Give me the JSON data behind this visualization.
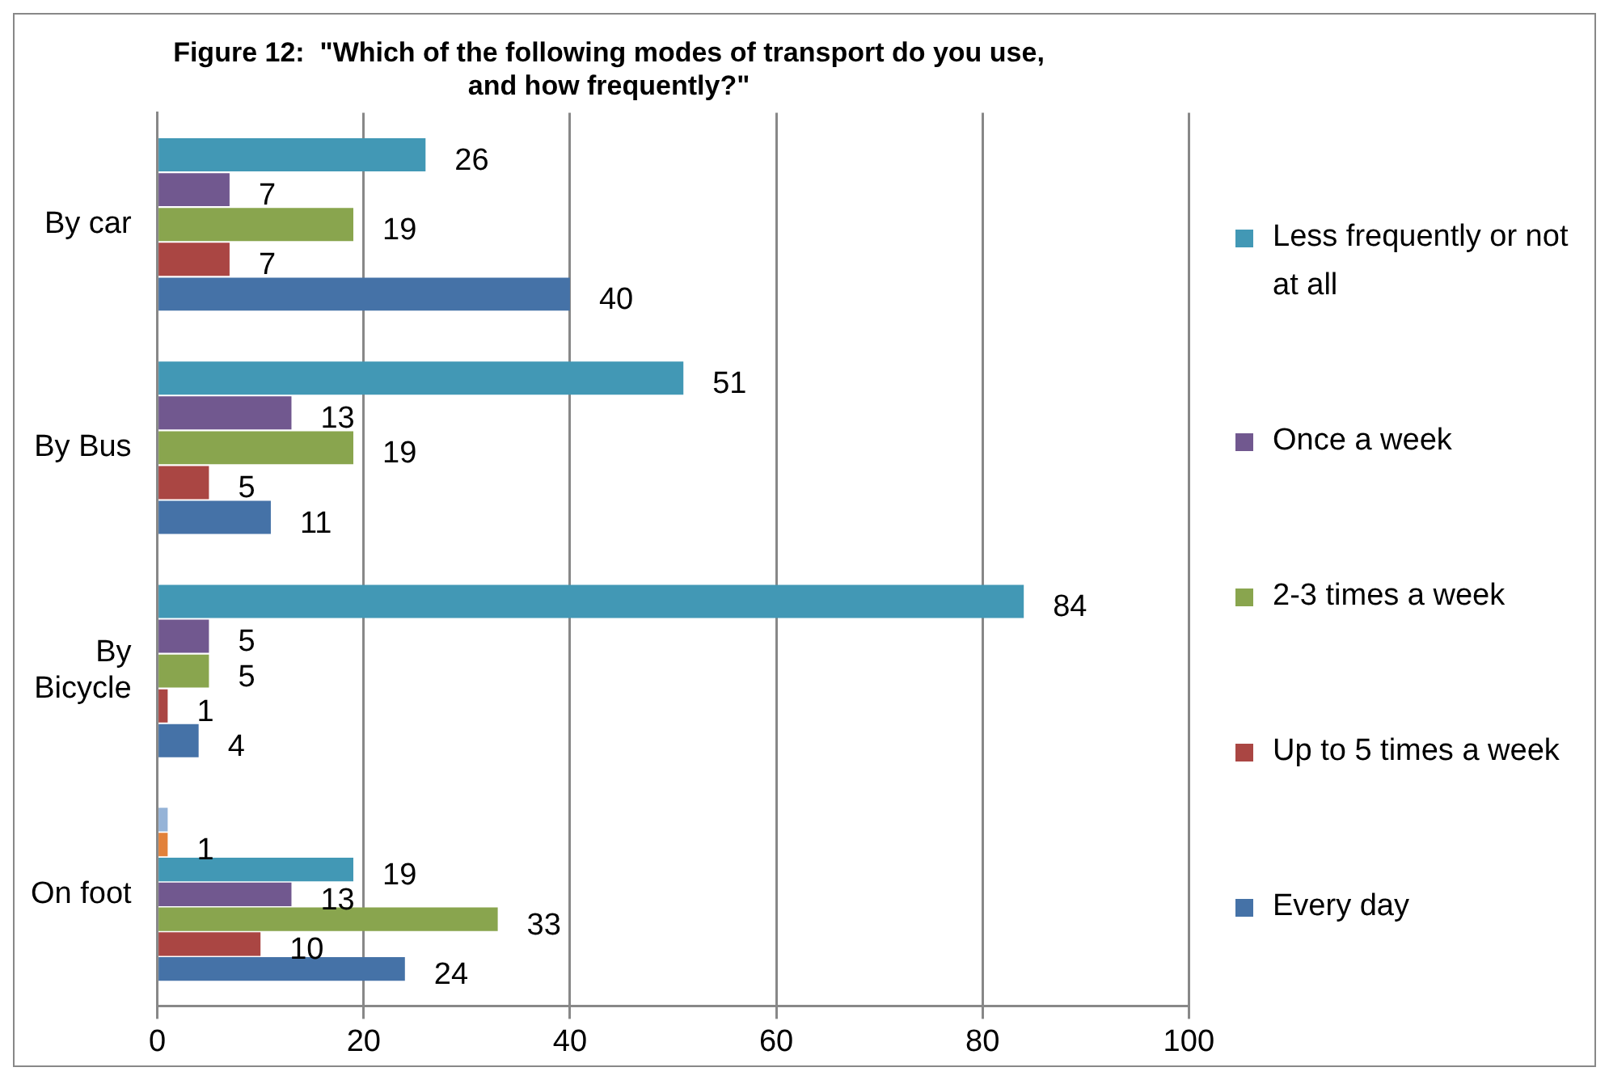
{
  "chart_data": {
    "type": "bar",
    "orientation": "horizontal",
    "title": "Figure 12:  \"Which of the following modes of transport do you use, and how frequently?\"",
    "categories": [
      "By car",
      "By Bus",
      "By Bicycle",
      "On foot"
    ],
    "series": [
      {
        "color": "#95b3d7",
        "values": [
          null,
          null,
          null,
          1
        ],
        "value_labels": [
          null,
          null,
          null,
          null
        ]
      },
      {
        "color": "#e2813a",
        "values": [
          null,
          null,
          null,
          1
        ],
        "value_labels": [
          null,
          null,
          null,
          "1"
        ]
      },
      {
        "name": "Less frequently or not at all",
        "color": "#4298b5",
        "values": [
          26,
          51,
          84,
          19
        ]
      },
      {
        "name": "Once a week",
        "color": "#71588f",
        "values": [
          7,
          13,
          5,
          13
        ]
      },
      {
        "name": "2-3 times a week",
        "color": "#89a54e",
        "values": [
          19,
          19,
          5,
          33
        ]
      },
      {
        "name": "Up to 5 times a week",
        "color": "#aa4643",
        "values": [
          7,
          5,
          1,
          10
        ]
      },
      {
        "name": "Every day",
        "color": "#4572a7",
        "values": [
          40,
          11,
          4,
          24
        ]
      }
    ],
    "xlim": [
      0,
      100
    ],
    "xticks": [
      0,
      20,
      40,
      60,
      80,
      100
    ],
    "grid": "x",
    "legend": "right",
    "data_labels": true
  }
}
